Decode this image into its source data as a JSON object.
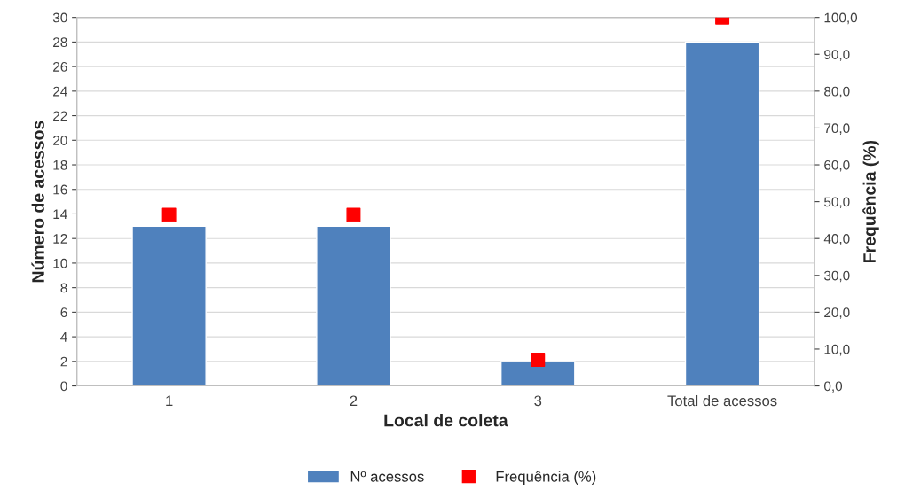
{
  "chart_data": {
    "type": "bar",
    "xlabel": "Local de coleta",
    "ylabel": "Número de acessos",
    "y2label": "Frequência (%)",
    "categories": [
      "1",
      "2",
      "3",
      "Total de acessos"
    ],
    "series": [
      {
        "name": "Nº acessos",
        "color": "#4f81bd",
        "values": [
          13,
          13,
          2,
          28
        ]
      },
      {
        "name": "Frequência (%)",
        "type": "scatter",
        "axis": "y2",
        "color": "#ff0000",
        "marker": "square",
        "values": [
          46.4,
          46.4,
          7.1,
          100
        ]
      }
    ],
    "ylim": [
      0,
      30
    ],
    "yticks": [
      0,
      2,
      4,
      6,
      8,
      10,
      12,
      14,
      16,
      18,
      20,
      22,
      24,
      26,
      28,
      30
    ],
    "y2lim": [
      0,
      100
    ],
    "y2ticks": [
      {
        "value": 0,
        "label": "0,0"
      },
      {
        "value": 10,
        "label": "10,0"
      },
      {
        "value": 20,
        "label": "20,0"
      },
      {
        "value": 30,
        "label": "30,0"
      },
      {
        "value": 40,
        "label": "40,0"
      },
      {
        "value": 50,
        "label": "50,0"
      },
      {
        "value": 60,
        "label": "60,0"
      },
      {
        "value": 70,
        "label": "70,0"
      },
      {
        "value": 80,
        "label": "80,0"
      },
      {
        "value": 90,
        "label": "90,0"
      },
      {
        "value": 100,
        "label": "100,0"
      }
    ],
    "grid": "y",
    "legend": "bottom"
  }
}
